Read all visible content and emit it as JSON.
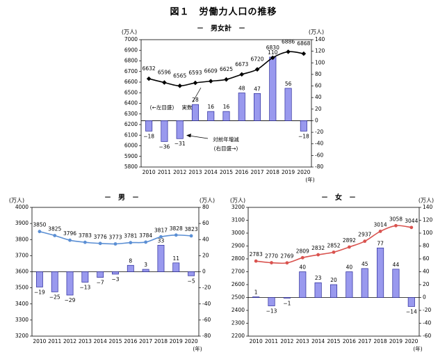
{
  "figure_title": "図１　労働力人口の推移",
  "chart_data": [
    {
      "id": "total",
      "type": "bar+line",
      "title": "－　男女計　－",
      "categories": [
        "2010",
        "2011",
        "2012",
        "2013",
        "2014",
        "2015",
        "2016",
        "2017",
        "2018",
        "2019",
        "2020"
      ],
      "series": [
        {
          "name": "実数",
          "axis": "left",
          "kind": "line",
          "color": "#000000",
          "values": [
            6632,
            6596,
            6565,
            6593,
            6609,
            6625,
            6673,
            6720,
            6830,
            6886,
            6868
          ]
        },
        {
          "name": "対前年増減",
          "axis": "right",
          "kind": "bar",
          "color": "#9999ee",
          "values": [
            -18,
            -36,
            -31,
            28,
            16,
            16,
            48,
            47,
            110,
            56,
            -18
          ]
        }
      ],
      "left_axis": {
        "unit": "(万人)",
        "min": 5800,
        "max": 7000,
        "step": 100
      },
      "right_axis": {
        "unit": "(万人)",
        "min": -80,
        "max": 140,
        "step": 20
      },
      "x_unit": "(年)",
      "annotations": {
        "left_note": "(←左目盛)",
        "jissuu": "実数",
        "change_1": "対前年増減",
        "change_2": "(右目盛→)"
      }
    },
    {
      "id": "male",
      "type": "bar+line",
      "title": "－　男　－",
      "categories": [
        "2010",
        "2011",
        "2012",
        "2013",
        "2014",
        "2015",
        "2016",
        "2017",
        "2018",
        "2019",
        "2020"
      ],
      "series": [
        {
          "name": "実数",
          "axis": "left",
          "kind": "line",
          "color": "#5b8fd4",
          "values": [
            3850,
            3825,
            3796,
            3783,
            3776,
            3773,
            3781,
            3784,
            3817,
            3828,
            3823
          ]
        },
        {
          "name": "対前年増減",
          "axis": "right",
          "kind": "bar",
          "color": "#9999ee",
          "values": [
            -19,
            -25,
            -29,
            -13,
            -7,
            -3,
            8,
            3,
            33,
            11,
            -5
          ]
        }
      ],
      "left_axis": {
        "unit": "(万人)",
        "min": 3200,
        "max": 4000,
        "step": 100
      },
      "right_axis": {
        "unit": "(万人)",
        "min": -80,
        "max": 80,
        "step": 20
      },
      "x_unit": "(年)"
    },
    {
      "id": "female",
      "type": "bar+line",
      "title": "－　女　－",
      "categories": [
        "2010",
        "2011",
        "2012",
        "2013",
        "2014",
        "2015",
        "2016",
        "2017",
        "2018",
        "2019",
        "2020"
      ],
      "series": [
        {
          "name": "実数",
          "axis": "left",
          "kind": "line",
          "color": "#d9534f",
          "values": [
            2783,
            2770,
            2769,
            2809,
            2832,
            2852,
            2892,
            2937,
            3014,
            3058,
            3044
          ]
        },
        {
          "name": "対前年増減",
          "axis": "right",
          "kind": "bar",
          "color": "#9999ee",
          "values": [
            1,
            -13,
            -1,
            40,
            23,
            20,
            40,
            45,
            77,
            44,
            -14
          ]
        }
      ],
      "left_axis": {
        "unit": "(万人)",
        "min": 2200,
        "max": 3200,
        "step": 100
      },
      "right_axis": {
        "unit": "(万人)",
        "min": -60,
        "max": 140,
        "step": 20
      },
      "x_unit": "(年)"
    }
  ]
}
